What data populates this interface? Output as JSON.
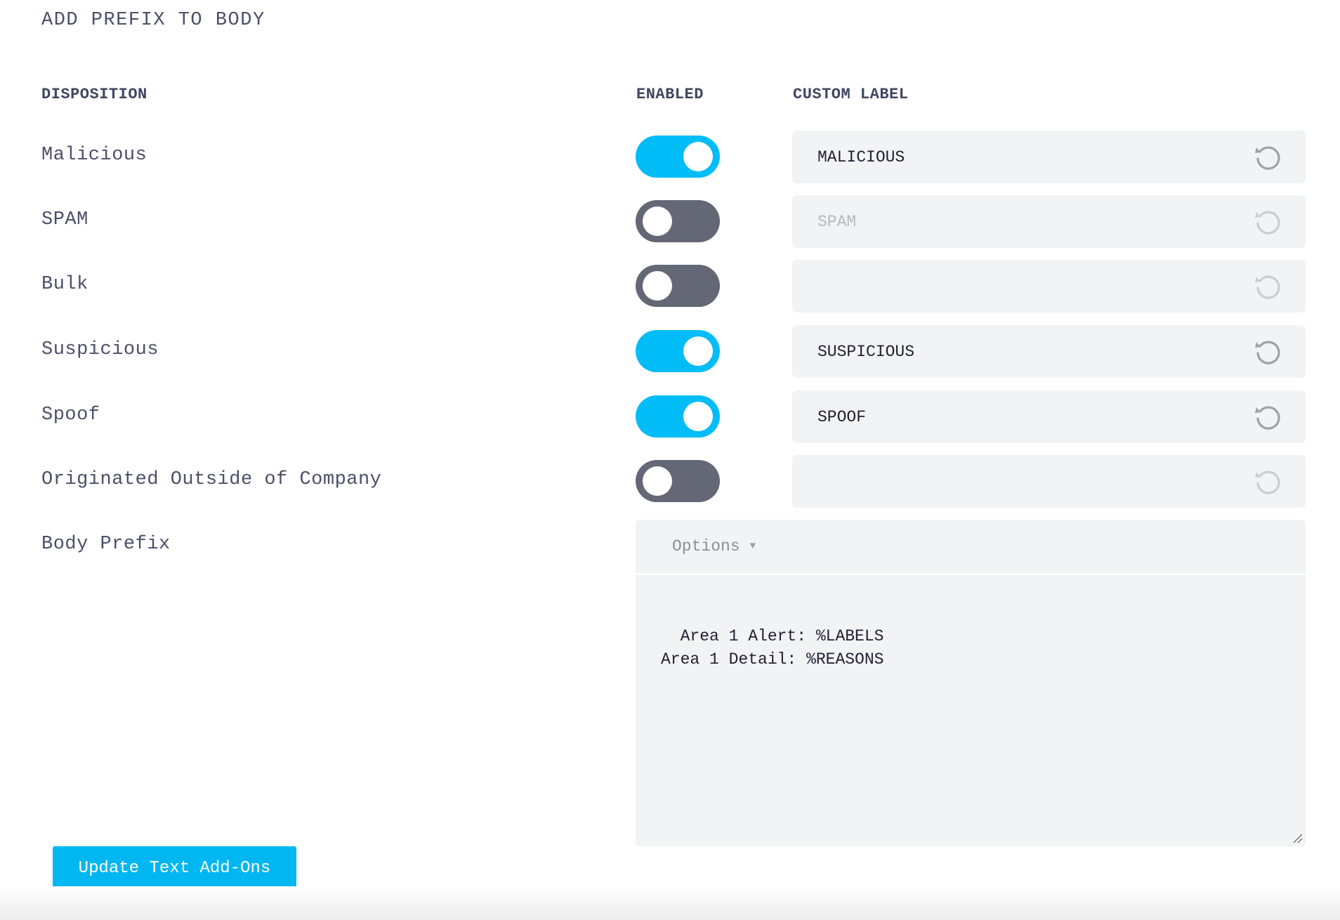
{
  "title": "ADD PREFIX TO BODY",
  "headers": {
    "disposition": "DISPOSITION",
    "enabled": "ENABLED",
    "custom_label": "CUSTOM LABEL"
  },
  "colors": {
    "accent": "#00bcf7",
    "toggle_off": "#646876",
    "input_bg": "#f1f3f5"
  },
  "rows": [
    {
      "label": "Malicious",
      "enabled": true,
      "custom_label": "MALICIOUS",
      "icon": "reset-icon"
    },
    {
      "label": "SPAM",
      "enabled": false,
      "custom_label": "SPAM",
      "icon": "reset-icon"
    },
    {
      "label": "Bulk",
      "enabled": false,
      "custom_label": "",
      "icon": "reset-icon"
    },
    {
      "label": "Suspicious",
      "enabled": true,
      "custom_label": "SUSPICIOUS",
      "icon": "reset-icon"
    },
    {
      "label": "Spoof",
      "enabled": true,
      "custom_label": "SPOOF",
      "icon": "reset-icon"
    },
    {
      "label": "Originated Outside of Company",
      "enabled": false,
      "custom_label": "",
      "icon": "reset-icon"
    }
  ],
  "body_prefix": {
    "label": "Body Prefix",
    "options_label": "Options",
    "text": "Area 1 Alert: %LABELS\nArea 1 Detail: %REASONS"
  },
  "update_button": "Update Text Add-Ons"
}
